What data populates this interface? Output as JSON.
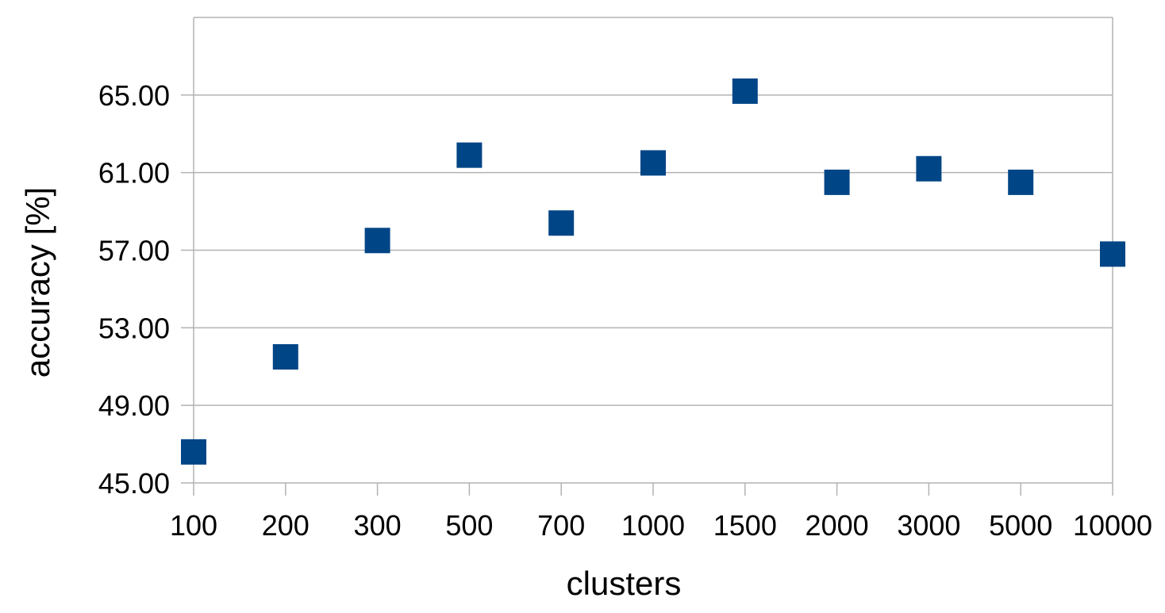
{
  "chart_data": {
    "type": "scatter",
    "title": "",
    "xlabel": "clusters",
    "ylabel": "accuracy [%]",
    "categories": [
      "100",
      "200",
      "300",
      "500",
      "700",
      "1000",
      "1500",
      "2000",
      "3000",
      "5000",
      "10000"
    ],
    "series": [
      {
        "values": [
          46.6,
          51.5,
          57.5,
          61.9,
          58.4,
          61.5,
          65.2,
          60.5,
          61.2,
          60.5,
          56.8
        ]
      }
    ],
    "ylim": [
      45,
      69
    ],
    "yticks": [
      45,
      49,
      53,
      57,
      61,
      65
    ],
    "ytick_labels": [
      "45.00",
      "49.00",
      "53.00",
      "57.00",
      "61.00",
      "65.00"
    ],
    "grid": true,
    "legend": "none",
    "marker": "square",
    "colors": {
      "marker": "#004586",
      "grid": "#b3b3b3",
      "axis": "#b3b3b3"
    }
  }
}
